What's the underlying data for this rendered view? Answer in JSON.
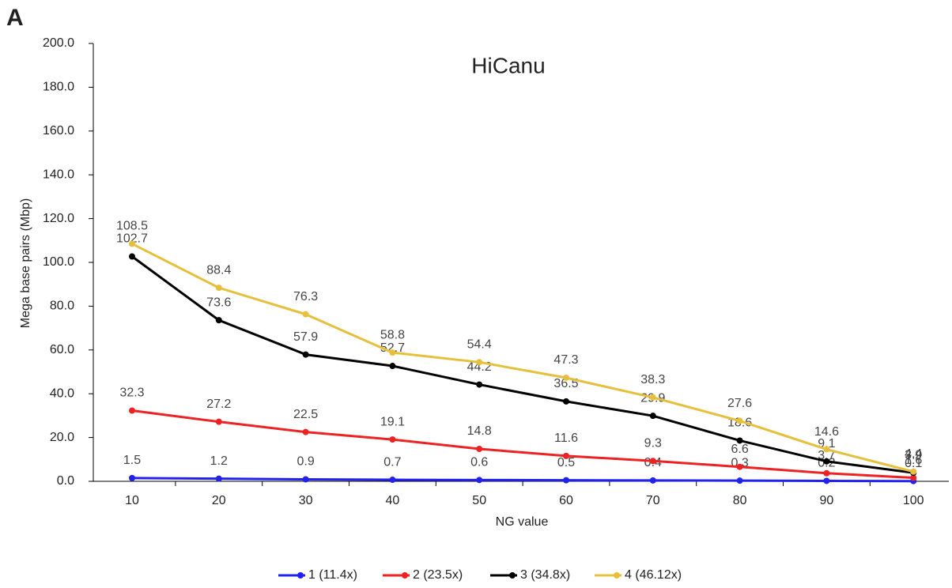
{
  "panel_label": "A",
  "chart_data": {
    "type": "line",
    "title": "HiCanu",
    "x_label": "NG value",
    "y_label": "Mega base pairs (Mbp)",
    "categories": [
      "10",
      "20",
      "30",
      "40",
      "50",
      "60",
      "70",
      "80",
      "90",
      "100"
    ],
    "ylim": [
      0,
      200
    ],
    "yticks": [
      {
        "value": 0,
        "label": "0.0"
      },
      {
        "value": 20,
        "label": "20.0"
      },
      {
        "value": 40,
        "label": "40.0"
      },
      {
        "value": 60,
        "label": "60.0"
      },
      {
        "value": 80,
        "label": "80.0"
      },
      {
        "value": 100,
        "label": "100.0"
      },
      {
        "value": 120,
        "label": "120.0"
      },
      {
        "value": 140,
        "label": "140.0"
      },
      {
        "value": 160,
        "label": "160.0"
      },
      {
        "value": 180,
        "label": "180.0"
      },
      {
        "value": 200,
        "label": "200.0"
      }
    ],
    "grid": false,
    "legend": "bottom",
    "series": [
      {
        "name": "1 (11.4x)",
        "color": "#2222ee",
        "values": [
          1.5,
          1.2,
          0.9,
          0.7,
          0.6,
          0.5,
          0.4,
          0.3,
          0.2,
          0.1
        ]
      },
      {
        "name": "2 (23.5x)",
        "color": "#ee2222",
        "values": [
          32.3,
          27.2,
          22.5,
          19.1,
          14.8,
          11.6,
          9.3,
          6.6,
          3.7,
          1.6
        ]
      },
      {
        "name": "3 (34.8x)",
        "color": "#000000",
        "values": [
          102.7,
          73.6,
          57.9,
          52.7,
          44.2,
          36.5,
          29.9,
          18.6,
          9.1,
          3.9
        ]
      },
      {
        "name": "4 (46.12x)",
        "color": "#e6c03c",
        "values": [
          108.5,
          88.4,
          76.3,
          58.8,
          54.4,
          47.3,
          38.3,
          27.6,
          14.6,
          4.4
        ]
      }
    ]
  }
}
